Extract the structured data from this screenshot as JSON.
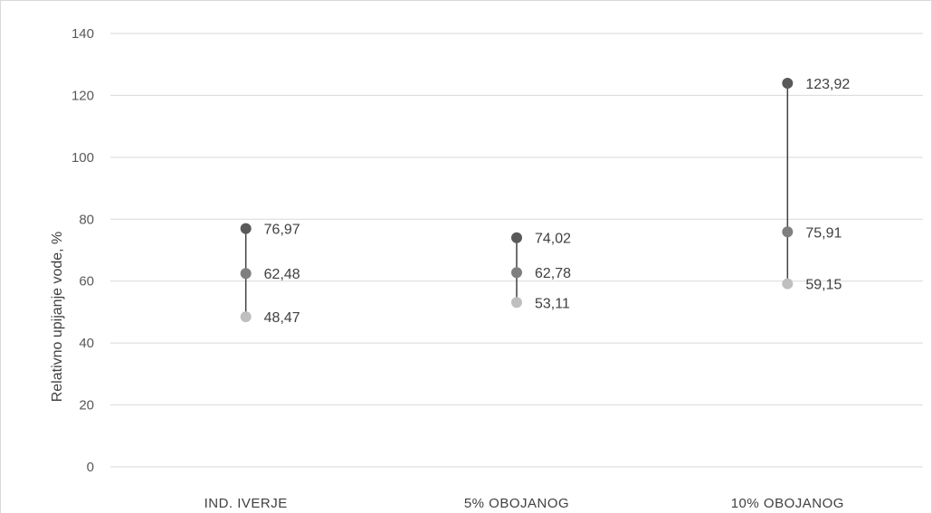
{
  "chart_data": {
    "type": "scatter",
    "title": "",
    "xlabel": "",
    "ylabel": "Relativno upijanje vode, %",
    "ylim": [
      0,
      140
    ],
    "yticks": [
      0,
      20,
      40,
      60,
      80,
      100,
      120,
      140
    ],
    "categories": [
      "IND. IVERJE",
      "5% OBOJANOG",
      "10% OBOJANOG"
    ],
    "series": [
      {
        "values": [
          76.97,
          74.02,
          123.92
        ],
        "labels": [
          "76,97",
          "74,02",
          "123,92"
        ],
        "color": "#595959"
      },
      {
        "values": [
          62.48,
          62.78,
          75.91
        ],
        "labels": [
          "62,48",
          "62,78",
          "75,91"
        ],
        "color": "#7f7f7f"
      },
      {
        "values": [
          48.47,
          53.11,
          59.15
        ],
        "labels": [
          "48,47",
          "53,11",
          "59,15"
        ],
        "color": "#bfbfbf"
      }
    ],
    "range_line_color": "#404040",
    "grid": true,
    "legend": "none"
  }
}
